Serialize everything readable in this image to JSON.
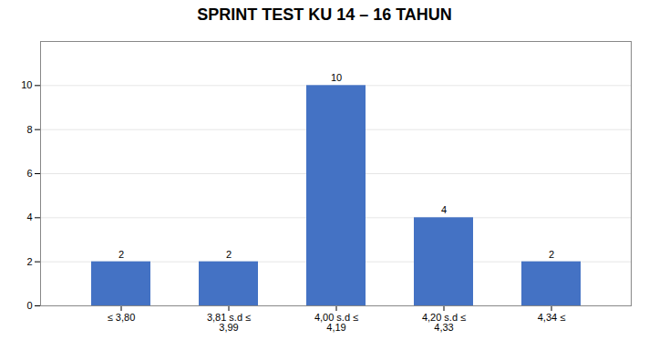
{
  "chart_data": {
    "type": "bar",
    "title": "SPRINT TEST KU 14 – 16 TAHUN",
    "categories": [
      "≤ 3,80",
      "3,81 s.d ≤\n3,99",
      "4,00 s.d ≤\n4,19",
      "4,20 s.d ≤\n4,33",
      "4,34 ≤"
    ],
    "values": [
      2,
      2,
      10,
      4,
      2
    ],
    "color": "#4472C4",
    "ylim": [
      0,
      12
    ],
    "yticks": [
      0,
      2,
      4,
      6,
      8,
      10
    ],
    "grid": true,
    "data_labels": true
  }
}
